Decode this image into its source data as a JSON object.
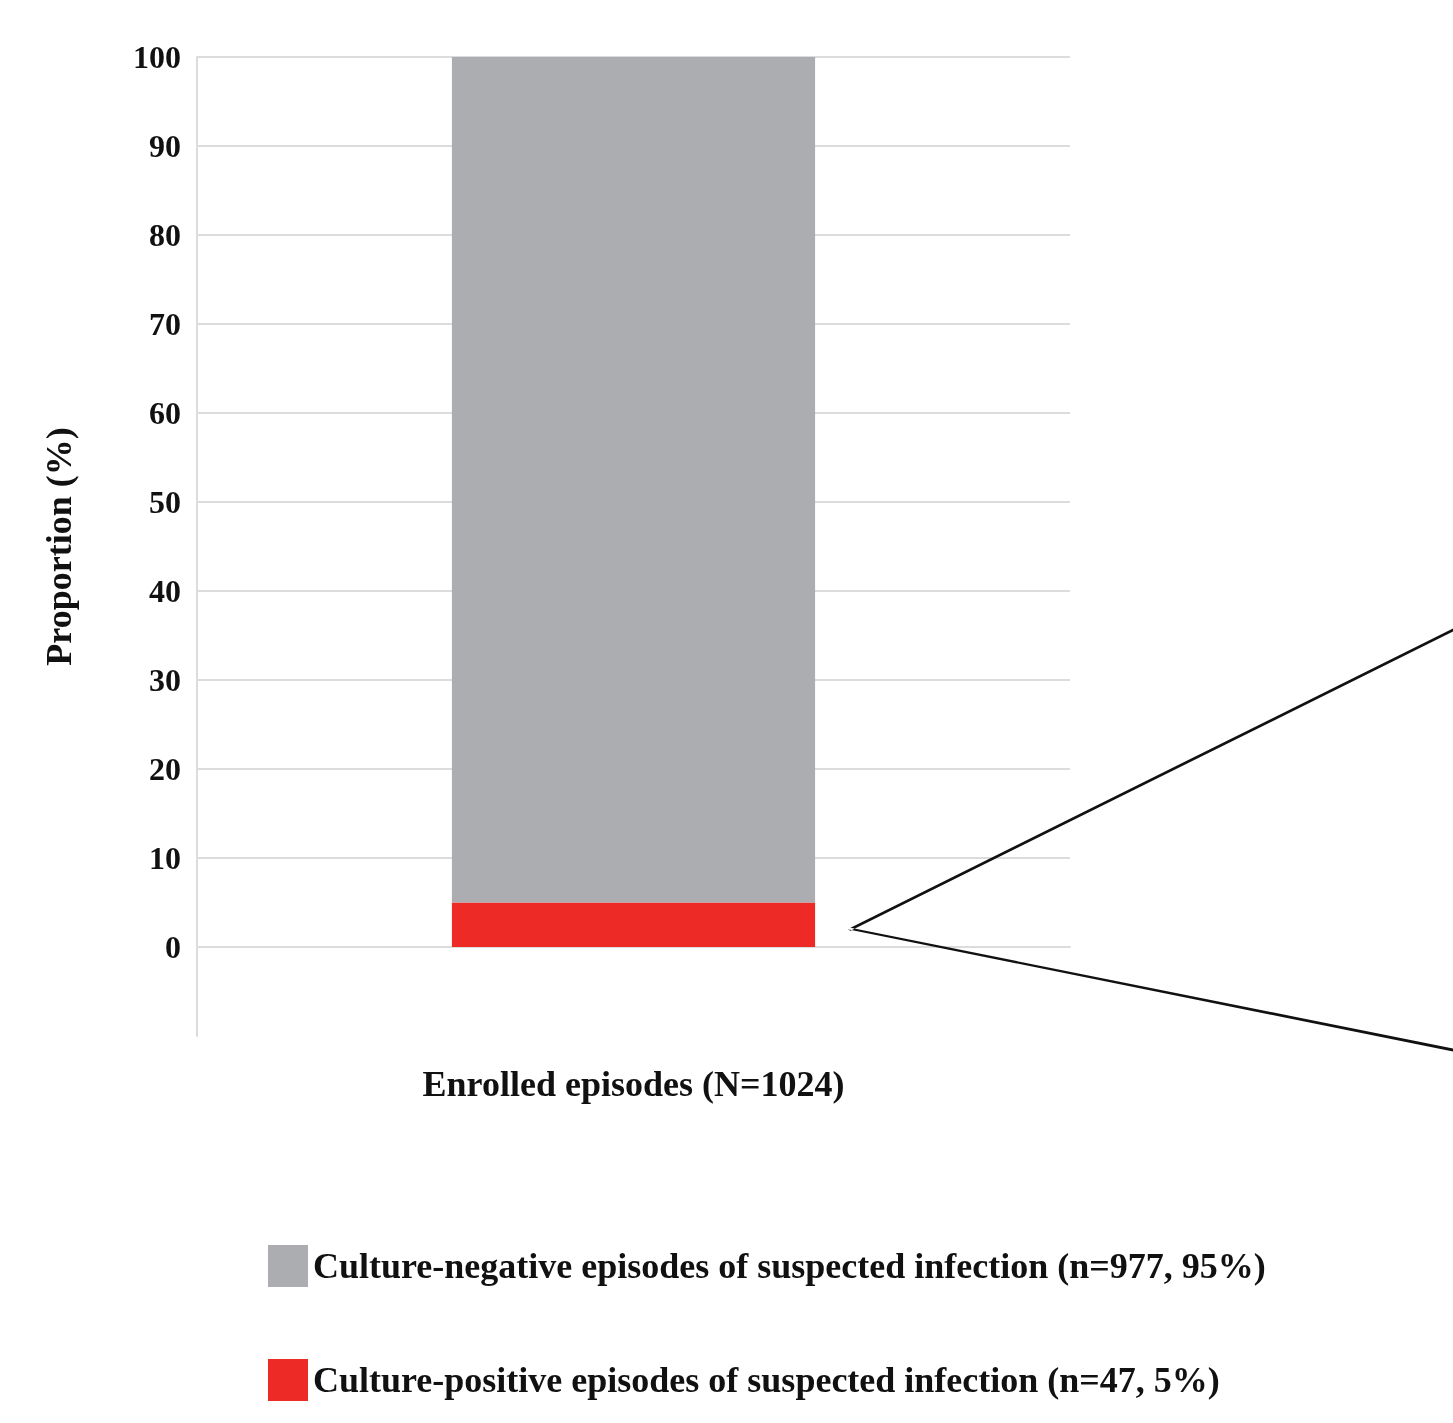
{
  "chart_data": {
    "type": "bar",
    "stacked": true,
    "ylabel": "Proportion (%)",
    "categories": [
      "Enrolled episodes (N=1024)"
    ],
    "series": [
      {
        "name": "Culture-positive episodes of suspected infection (n=47, 5%)",
        "color": "#ee2a27",
        "values": [
          5
        ]
      },
      {
        "name": "Culture-negative episodes of suspected infection (n=977, 95%)",
        "color": "#acadb0",
        "values": [
          95
        ]
      }
    ],
    "ylim": [
      -10,
      100
    ],
    "yticks": [
      0,
      10,
      20,
      30,
      40,
      50,
      60,
      70,
      80,
      90,
      100
    ],
    "grid": "y",
    "legend": "bottom"
  }
}
